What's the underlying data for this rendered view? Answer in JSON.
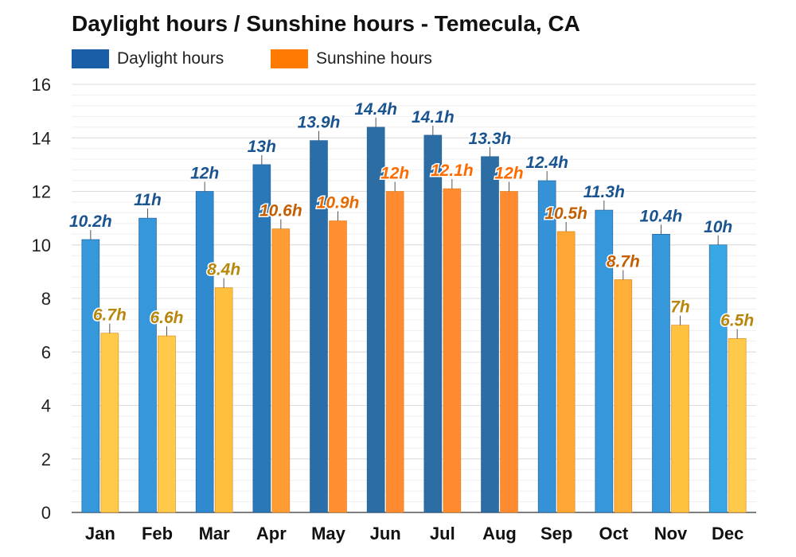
{
  "title": "Daylight hours / Sunshine hours - Temecula, CA",
  "legend": {
    "daylight": {
      "label": "Daylight hours",
      "color": "#1a5ea8"
    },
    "sunshine": {
      "label": "Sunshine hours",
      "color": "#ff7a00"
    }
  },
  "chart_data": {
    "type": "bar",
    "title": "Daylight hours / Sunshine hours - Temecula, CA",
    "xlabel": "",
    "ylabel": "",
    "categories": [
      "Jan",
      "Feb",
      "Mar",
      "Apr",
      "May",
      "Jun",
      "Jul",
      "Aug",
      "Sep",
      "Oct",
      "Nov",
      "Dec"
    ],
    "ylim": [
      0,
      16
    ],
    "yticks": [
      0,
      2,
      4,
      6,
      8,
      10,
      12,
      14,
      16
    ],
    "grid": true,
    "legend_position": "top-left",
    "series": [
      {
        "name": "Daylight hours",
        "values": [
          10.2,
          11,
          12,
          13,
          13.9,
          14.4,
          14.1,
          13.3,
          12.4,
          11.3,
          10.4,
          10
        ],
        "labels": [
          "10.2h",
          "11h",
          "12h",
          "13h",
          "13.9h",
          "14.4h",
          "14.1h",
          "13.3h",
          "12.4h",
          "11.3h",
          "10.4h",
          "10h"
        ],
        "colors": [
          "#3697da",
          "#3697da",
          "#2f8ad0",
          "#2a78b8",
          "#296ea8",
          "#2c6da4",
          "#2c6da4",
          "#2c6da4",
          "#3592d6",
          "#3697da",
          "#3697da",
          "#38a7e6"
        ],
        "label_color": "#1a5490"
      },
      {
        "name": "Sunshine hours",
        "values": [
          6.7,
          6.6,
          8.4,
          10.6,
          10.9,
          12,
          12.1,
          12,
          10.5,
          8.7,
          7,
          6.5
        ],
        "labels": [
          "6.7h",
          "6.6h",
          "8.4h",
          "10.6h",
          "10.9h",
          "12h",
          "12.1h",
          "12h",
          "10.5h",
          "8.7h",
          "7h",
          "6.5h"
        ],
        "colors": [
          "#ffc94a",
          "#ffc94a",
          "#ffc03e",
          "#ff9c33",
          "#ff8f30",
          "#ff8a2f",
          "#ff8a2f",
          "#ff8a2f",
          "#ffa634",
          "#ffae38",
          "#ffc240",
          "#ffc94a"
        ],
        "label_colors": [
          "#b8860b",
          "#b8860b",
          "#b8860b",
          "#c45e00",
          "#e86a00",
          "#ff6a00",
          "#ff6a00",
          "#ff6a00",
          "#c45e00",
          "#c45e00",
          "#b8860b",
          "#b8860b"
        ]
      }
    ]
  }
}
